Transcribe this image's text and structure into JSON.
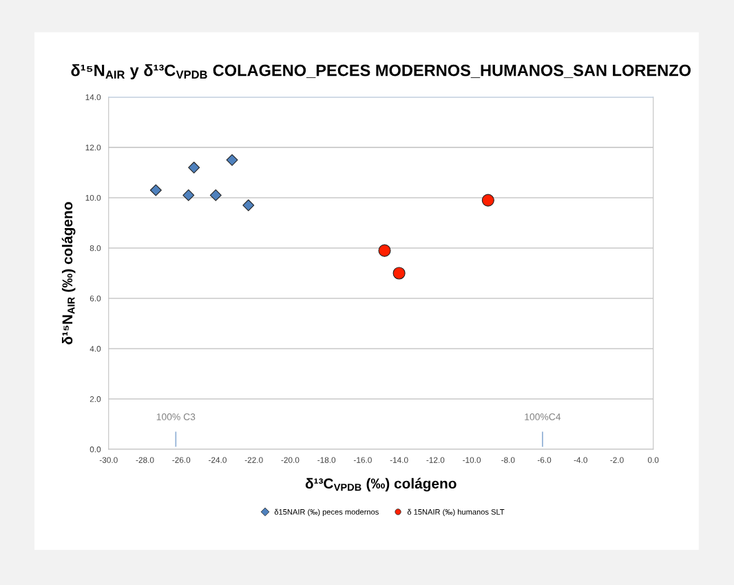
{
  "chart_data": {
    "type": "scatter",
    "title": "δ¹⁵N$_{AIR}$ y δ¹³C$_{VPDB}$ COLAGENO_PECES MODERNOS_HUMANOS_SAN LORENZO",
    "xlabel": "δ¹³C$_{VPDB}$ (‰) colágeno",
    "ylabel": "δ¹⁵N$_{AIR}$ (‰) colágeno",
    "series": [
      {
        "name": "δ15NAIR (‰) peces modernos",
        "color": "#4f81bd",
        "marker": "diamond",
        "x": [
          -27.4,
          -25.6,
          -25.3,
          -24.1,
          -23.2,
          -22.3
        ],
        "values": [
          10.3,
          10.1,
          11.2,
          10.1,
          11.5,
          9.7
        ]
      },
      {
        "name": "δ 15NAIR (‰) humanos SLT",
        "color": "#ff2000",
        "marker": "circle",
        "x": [
          -14.8,
          -14.0,
          -9.1
        ],
        "values": [
          7.9,
          7.0,
          9.9
        ]
      },
      {
        "type": "line",
        "color": "#95b3d7",
        "marker": "none",
        "x": [
          -26.3,
          -26.3
        ],
        "values": [
          0.1,
          0.7
        ]
      },
      {
        "type": "line",
        "color": "#95b3d7",
        "marker": "none",
        "x": [
          -6.1,
          -6.1
        ],
        "values": [
          0.1,
          0.7
        ]
      }
    ],
    "xlim": [
      -30,
      0
    ],
    "xticks": [
      {
        "value": -30,
        "label": "-30.0"
      },
      {
        "value": -28,
        "label": "-28.0"
      },
      {
        "value": -26,
        "label": "-26.0"
      },
      {
        "value": -24,
        "label": "-24.0"
      },
      {
        "value": -22,
        "label": "-22.0"
      },
      {
        "value": -20,
        "label": "-20.0"
      },
      {
        "value": -18,
        "label": "-18.0"
      },
      {
        "value": -16,
        "label": "-16.0"
      },
      {
        "value": -14,
        "label": "-14.0"
      },
      {
        "value": -12,
        "label": "-12.0"
      },
      {
        "value": -10,
        "label": "-10.0"
      },
      {
        "value": -8,
        "label": "-8.0"
      },
      {
        "value": -6,
        "label": "-6.0"
      },
      {
        "value": -4,
        "label": "-4.0"
      },
      {
        "value": -2,
        "label": "-2.0"
      },
      {
        "value": 0,
        "label": "0.0"
      }
    ],
    "ylim": [
      0,
      14
    ],
    "yticks": [
      {
        "value": 0,
        "label": "0.0"
      },
      {
        "value": 2,
        "label": "2.0"
      },
      {
        "value": 4,
        "label": "4.0"
      },
      {
        "value": 6,
        "label": "6.0"
      },
      {
        "value": 8,
        "label": "8.0"
      },
      {
        "value": 10,
        "label": "10.0"
      },
      {
        "value": 12,
        "label": "12.0"
      },
      {
        "value": 14,
        "label": "14.0"
      }
    ],
    "annotations": [
      {
        "text": "100% C3",
        "x": -26.3,
        "y": 0.7
      },
      {
        "text": "100%C4",
        "x": -6.1,
        "y": 0.7
      }
    ],
    "grid": "y",
    "legend": "bottom"
  }
}
